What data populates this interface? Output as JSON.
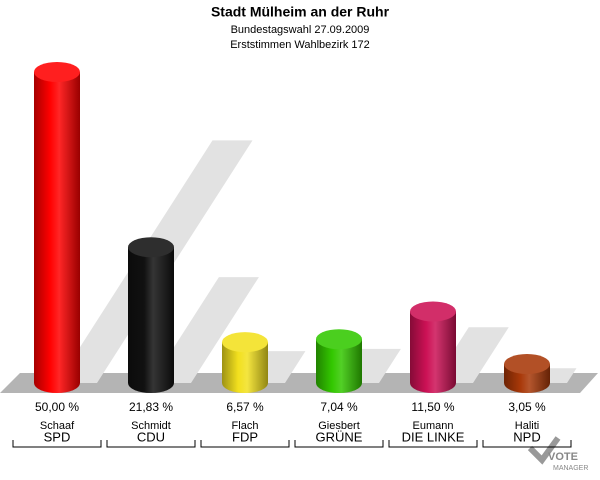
{
  "chart_data": {
    "type": "bar",
    "title": "Stadt Mülheim an der Ruhr",
    "subtitle": "Bundestagswahl 27.09.2009",
    "subtitle2": "Erststimmen Wahlbezirk 172",
    "categories": [
      "SPD",
      "CDU",
      "FDP",
      "GRÜNE",
      "DIE LINKE",
      "NPD"
    ],
    "candidates": [
      "Schaaf",
      "Schmidt",
      "Flach",
      "Giesbert",
      "Eumann",
      "Haliti"
    ],
    "values": [
      50.0,
      21.83,
      6.57,
      7.04,
      11.5,
      3.05
    ],
    "value_labels": [
      "50,00 %",
      "21,83 %",
      "6,57 %",
      "7,04 %",
      "11,50 %",
      "3,05 %"
    ],
    "colors": [
      "#ff0000",
      "#111111",
      "#f2e01e",
      "#33c800",
      "#cc1155",
      "#a83808"
    ],
    "logo": [
      "VOTE",
      "MANAGER"
    ]
  }
}
